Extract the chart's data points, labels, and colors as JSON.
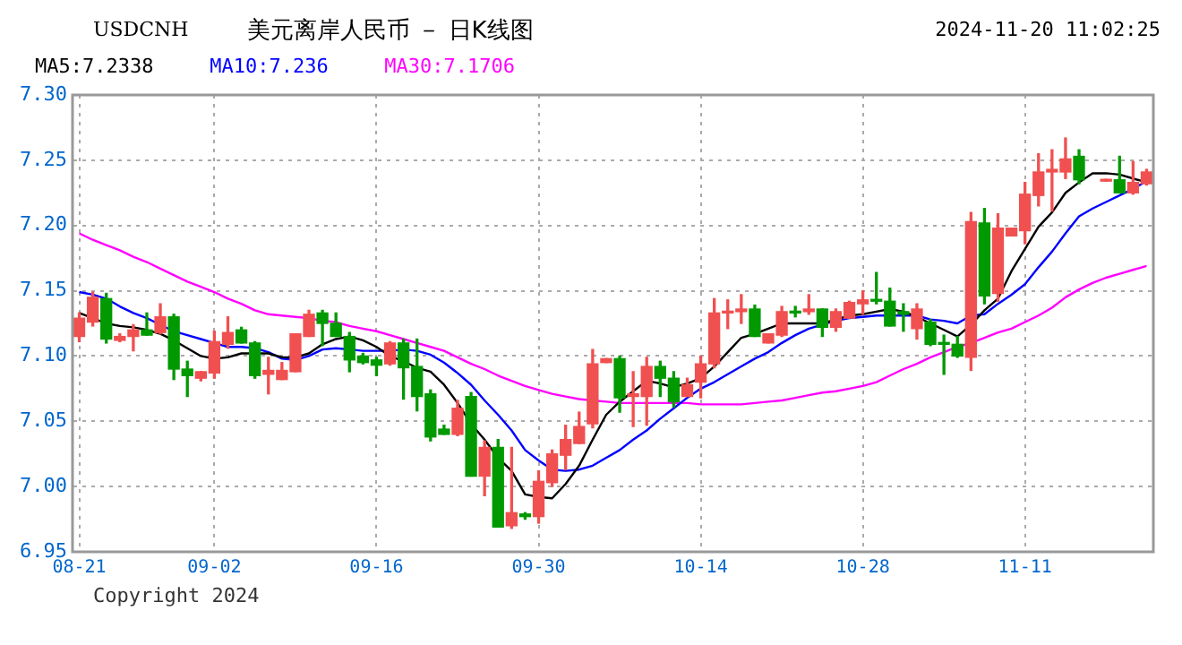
{
  "chart_data": {
    "type": "candlestick",
    "title": "美元离岸人民币 － 日K线图",
    "annotations": [
      "USDCNH",
      "2024-11-20 11:02:25",
      "Copyright 2024"
    ],
    "categories": [
      "08-21",
      null,
      null,
      null,
      null,
      null,
      null,
      null,
      null,
      null,
      "09-02",
      null,
      null,
      null,
      null,
      null,
      null,
      null,
      null,
      null,
      null,
      null,
      "09-16",
      null,
      null,
      null,
      null,
      null,
      null,
      null,
      null,
      null,
      null,
      null,
      "09-30",
      null,
      null,
      null,
      null,
      null,
      null,
      null,
      null,
      null,
      null,
      null,
      "10-14",
      null,
      null,
      null,
      null,
      null,
      null,
      null,
      null,
      null,
      null,
      null,
      "10-28",
      null,
      null,
      null,
      null,
      null,
      null,
      null,
      null,
      null,
      null,
      null,
      "11-11",
      null,
      null,
      null,
      null,
      null,
      null,
      null,
      null,
      null
    ],
    "ohlc": [
      [
        7.115,
        7.133,
        7.111,
        7.129
      ],
      [
        7.126,
        7.149,
        7.123,
        7.145
      ],
      [
        7.144,
        7.148,
        7.11,
        7.113
      ],
      [
        7.112,
        7.117,
        7.111,
        7.115
      ],
      [
        7.115,
        7.124,
        7.104,
        7.12
      ],
      [
        7.12,
        7.133,
        7.116,
        7.116
      ],
      [
        7.118,
        7.14,
        7.117,
        7.13
      ],
      [
        7.13,
        7.132,
        7.082,
        7.09
      ],
      [
        7.09,
        7.096,
        7.069,
        7.085
      ],
      [
        7.083,
        7.088,
        7.081,
        7.088
      ],
      [
        7.087,
        7.119,
        7.083,
        7.111
      ],
      [
        7.109,
        7.13,
        7.106,
        7.118
      ],
      [
        7.12,
        7.122,
        7.11,
        7.11
      ],
      [
        7.11,
        7.111,
        7.083,
        7.085
      ],
      [
        7.086,
        7.099,
        7.071,
        7.089
      ],
      [
        7.082,
        7.095,
        7.082,
        7.089
      ],
      [
        7.088,
        7.117,
        7.088,
        7.117
      ],
      [
        7.115,
        7.135,
        7.115,
        7.132
      ],
      [
        7.133,
        7.135,
        7.108,
        7.125
      ],
      [
        7.125,
        7.133,
        7.115,
        7.115
      ],
      [
        7.115,
        7.118,
        7.088,
        7.097
      ],
      [
        7.1,
        7.102,
        7.094,
        7.095
      ],
      [
        7.097,
        7.099,
        7.085,
        7.093
      ],
      [
        7.094,
        7.111,
        7.093,
        7.11
      ],
      [
        7.11,
        7.113,
        7.067,
        7.091
      ],
      [
        7.092,
        7.113,
        7.058,
        7.069
      ],
      [
        7.071,
        7.074,
        7.035,
        7.038
      ],
      [
        7.044,
        7.047,
        7.04,
        7.04
      ],
      [
        7.04,
        7.066,
        7.039,
        7.06
      ],
      [
        7.069,
        7.072,
        7.008,
        7.008
      ],
      [
        7.008,
        7.035,
        6.993,
        7.03
      ],
      [
        7.03,
        7.036,
        6.969,
        6.969
      ],
      [
        6.97,
        7.03,
        6.968,
        6.98
      ],
      [
        6.979,
        6.98,
        6.975,
        6.977
      ],
      [
        6.977,
        7.012,
        6.972,
        7.004
      ],
      [
        7.003,
        7.028,
        7.0,
        7.025
      ],
      [
        7.024,
        7.047,
        7.013,
        7.036
      ],
      [
        7.033,
        7.057,
        7.033,
        7.046
      ],
      [
        7.048,
        7.105,
        7.045,
        7.094
      ],
      [
        7.095,
        7.098,
        7.095,
        7.098
      ],
      [
        7.098,
        7.1,
        7.057,
        7.068
      ],
      [
        7.069,
        7.088,
        7.046,
        7.071
      ],
      [
        7.069,
        7.099,
        7.047,
        7.092
      ],
      [
        7.092,
        7.096,
        7.069,
        7.083
      ],
      [
        7.083,
        7.088,
        7.061,
        7.065
      ],
      [
        7.069,
        7.083,
        7.069,
        7.078
      ],
      [
        7.08,
        7.1,
        7.068,
        7.094
      ],
      [
        7.094,
        7.144,
        7.091,
        7.133
      ],
      [
        7.133,
        7.143,
        7.121,
        7.134
      ],
      [
        7.134,
        7.147,
        7.125,
        7.136
      ],
      [
        7.136,
        7.139,
        7.115,
        7.115
      ],
      [
        7.11,
        7.117,
        7.11,
        7.117
      ],
      [
        7.116,
        7.138,
        7.115,
        7.134
      ],
      [
        7.134,
        7.138,
        7.13,
        7.133
      ],
      [
        7.134,
        7.147,
        7.132,
        7.136
      ],
      [
        7.136,
        7.136,
        7.115,
        7.122
      ],
      [
        7.122,
        7.136,
        7.119,
        7.134
      ],
      [
        7.129,
        7.142,
        7.129,
        7.141
      ],
      [
        7.14,
        7.15,
        7.132,
        7.143
      ],
      [
        7.143,
        7.164,
        7.14,
        7.142
      ],
      [
        7.142,
        7.152,
        7.123,
        7.123
      ],
      [
        7.134,
        7.14,
        7.119,
        7.132
      ],
      [
        7.121,
        7.14,
        7.113,
        7.136
      ],
      [
        7.126,
        7.128,
        7.108,
        7.109
      ],
      [
        7.11,
        7.116,
        7.086,
        7.109
      ],
      [
        7.109,
        7.115,
        7.099,
        7.1
      ],
      [
        7.099,
        7.21,
        7.089,
        7.203
      ],
      [
        7.202,
        7.213,
        7.14,
        7.146
      ],
      [
        7.148,
        7.209,
        7.142,
        7.198
      ],
      [
        7.192,
        7.198,
        7.192,
        7.198
      ],
      [
        7.196,
        7.233,
        7.186,
        7.224
      ],
      [
        7.223,
        7.255,
        7.215,
        7.241
      ],
      [
        7.241,
        7.258,
        7.211,
        7.243
      ],
      [
        7.241,
        7.267,
        7.236,
        7.251
      ],
      [
        7.253,
        7.258,
        7.232,
        7.235
      ],
      null,
      [
        7.234,
        7.235,
        7.234,
        7.235
      ],
      [
        7.235,
        7.253,
        7.225,
        7.225
      ],
      [
        7.225,
        7.249,
        7.224,
        7.233
      ],
      [
        7.232,
        7.243,
        7.231,
        7.241
      ]
    ],
    "colors": [
      "#f05050",
      "#f05050",
      "#009900",
      "#f05050",
      "#f05050",
      "#009900",
      "#f05050",
      "#009900",
      "#009900",
      "#f05050",
      "#f05050",
      "#f05050",
      "#009900",
      "#009900",
      "#f05050",
      "#f05050",
      "#f05050",
      "#f05050",
      "#009900",
      "#009900",
      "#009900",
      "#009900",
      "#009900",
      "#f05050",
      "#009900",
      "#009900",
      "#009900",
      "#009900",
      "#f05050",
      "#009900",
      "#f05050",
      "#009900",
      "#f05050",
      "#009900",
      "#f05050",
      "#f05050",
      "#f05050",
      "#f05050",
      "#f05050",
      "#f05050",
      "#009900",
      "#f05050",
      "#f05050",
      "#009900",
      "#009900",
      "#f05050",
      "#f05050",
      "#f05050",
      "#f05050",
      "#f05050",
      "#009900",
      "#f05050",
      "#f05050",
      "#009900",
      "#f05050",
      "#009900",
      "#f05050",
      "#f05050",
      "#f05050",
      "#009900",
      "#009900",
      "#009900",
      "#f05050",
      "#009900",
      "#009900",
      "#009900",
      "#f05050",
      "#009900",
      "#f05050",
      "#f05050",
      "#f05050",
      "#f05050",
      "#f05050",
      "#f05050",
      "#009900",
      null,
      "#f05050",
      "#009900",
      "#f05050",
      "#f05050"
    ],
    "series": [
      {
        "name": "MA5:7.2338",
        "type": "line",
        "color": "#000000",
        "values": [
          7.133,
          7.129,
          7.125,
          7.123,
          7.122,
          7.12,
          7.117,
          7.112,
          7.106,
          7.1,
          7.098,
          7.099,
          7.102,
          7.102,
          7.102,
          7.099,
          7.099,
          7.102,
          7.109,
          7.113,
          7.115,
          7.112,
          7.107,
          7.1,
          7.096,
          7.091,
          7.088,
          7.078,
          7.064,
          7.048,
          7.036,
          7.022,
          7.012,
          6.994,
          6.992,
          6.991,
          7.002,
          7.016,
          7.036,
          7.055,
          7.065,
          7.073,
          7.081,
          7.079,
          7.076,
          7.079,
          7.083,
          7.092,
          7.103,
          7.114,
          7.117,
          7.121,
          7.125,
          7.125,
          7.125,
          7.125,
          7.128,
          7.131,
          7.132,
          7.134,
          7.136,
          7.134,
          7.13,
          7.125,
          7.12,
          7.115,
          7.124,
          7.135,
          7.144,
          7.165,
          7.182,
          7.199,
          7.21,
          7.225,
          7.233,
          7.24,
          7.24,
          7.239,
          7.236,
          7.233
        ]
      },
      {
        "name": "MA10:7.236",
        "type": "line",
        "color": "#0000ff",
        "values": [
          7.149,
          7.147,
          7.144,
          7.138,
          7.133,
          7.129,
          7.124,
          7.119,
          7.116,
          7.113,
          7.11,
          7.107,
          7.107,
          7.106,
          7.103,
          7.098,
          7.097,
          7.1,
          7.105,
          7.106,
          7.105,
          7.104,
          7.104,
          7.104,
          7.105,
          7.104,
          7.101,
          7.095,
          7.087,
          7.078,
          7.066,
          7.055,
          7.043,
          7.028,
          7.02,
          7.013,
          7.012,
          7.013,
          7.016,
          7.022,
          7.028,
          7.036,
          7.043,
          7.052,
          7.06,
          7.068,
          7.075,
          7.08,
          7.086,
          7.092,
          7.098,
          7.103,
          7.11,
          7.116,
          7.121,
          7.124,
          7.127,
          7.129,
          7.13,
          7.131,
          7.131,
          7.131,
          7.131,
          7.128,
          7.127,
          7.125,
          7.131,
          7.132,
          7.14,
          7.147,
          7.155,
          7.168,
          7.18,
          7.194,
          7.207,
          7.213,
          7.218,
          7.223,
          7.228,
          7.234
        ]
      },
      {
        "name": "MA30:7.1706",
        "type": "line",
        "color": "#ff00ff",
        "values": [
          7.194,
          7.189,
          7.185,
          7.181,
          7.176,
          7.172,
          7.167,
          7.162,
          7.157,
          7.153,
          7.149,
          7.144,
          7.14,
          7.135,
          7.132,
          7.131,
          7.13,
          7.129,
          7.127,
          7.126,
          7.123,
          7.121,
          7.119,
          7.116,
          7.113,
          7.11,
          7.107,
          7.104,
          7.099,
          7.094,
          7.09,
          7.085,
          7.081,
          7.077,
          7.074,
          7.071,
          7.069,
          7.067,
          7.066,
          7.065,
          7.064,
          7.064,
          7.064,
          7.064,
          7.064,
          7.064,
          7.063,
          7.063,
          7.063,
          7.063,
          7.064,
          7.065,
          7.066,
          7.068,
          7.07,
          7.072,
          7.073,
          7.075,
          7.077,
          7.08,
          7.085,
          7.09,
          7.094,
          7.099,
          7.103,
          7.107,
          7.11,
          7.114,
          7.118,
          7.121,
          7.126,
          7.131,
          7.137,
          7.145,
          7.151,
          7.156,
          7.16,
          7.163,
          7.166,
          7.169
        ]
      }
    ],
    "ylim": [
      6.95,
      7.3
    ],
    "yticks": [
      {
        "value": 6.95,
        "label": "6.95"
      },
      {
        "value": 7.0,
        "label": "7.00"
      },
      {
        "value": 7.05,
        "label": "7.05"
      },
      {
        "value": 7.1,
        "label": "7.10"
      },
      {
        "value": 7.15,
        "label": "7.15"
      },
      {
        "value": 7.2,
        "label": "7.20"
      },
      {
        "value": 7.25,
        "label": "7.25"
      },
      {
        "value": 7.3,
        "label": "7.30"
      }
    ],
    "grid": true,
    "legend": "top left",
    "line_style": "solid",
    "marker": "none"
  }
}
